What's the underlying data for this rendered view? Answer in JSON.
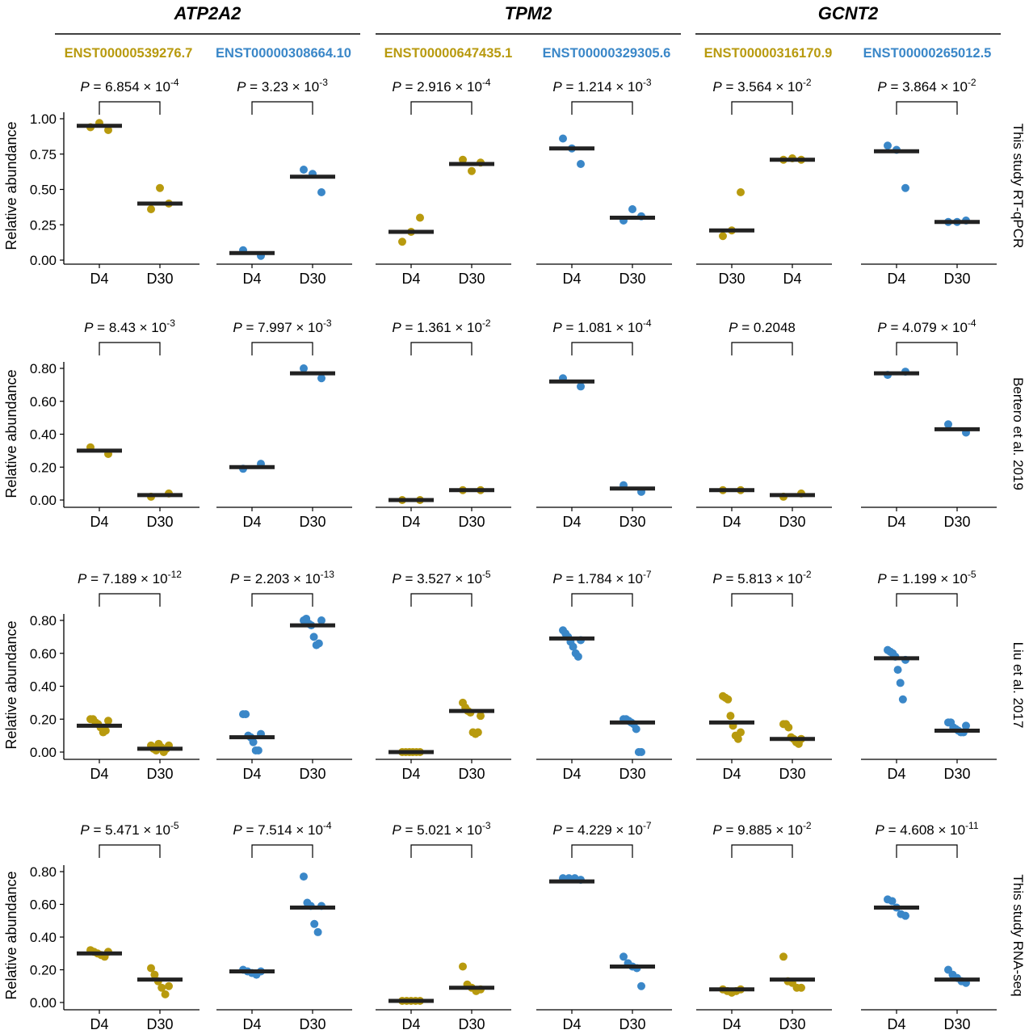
{
  "colors": {
    "isoformA": "#B89A0E",
    "isoformB": "#3A87C8",
    "medianBar": "#222222",
    "axis": "#000000"
  },
  "genes": [
    {
      "name": "ATP2A2",
      "isoforms": [
        {
          "id": "ENST00000539276.7",
          "color": "#B89A0E"
        },
        {
          "id": "ENST00000308664.10",
          "color": "#3A87C8"
        }
      ]
    },
    {
      "name": "TPM2",
      "isoforms": [
        {
          "id": "ENST00000647435.1",
          "color": "#B89A0E"
        },
        {
          "id": "ENST00000329305.6",
          "color": "#3A87C8"
        }
      ]
    },
    {
      "name": "GCNT2",
      "isoforms": [
        {
          "id": "ENST00000316170.9",
          "color": "#B89A0E"
        },
        {
          "id": "ENST00000265012.5",
          "color": "#3A87C8"
        }
      ]
    }
  ],
  "ylabel": "Relative abundance",
  "rows": [
    {
      "label": "This study RT-qPCR",
      "yticks": [
        "0.00",
        "0.25",
        "0.50",
        "0.75",
        "1.00"
      ],
      "ylim": [
        0,
        1.0
      ]
    },
    {
      "label": "Bertero et al. 2019",
      "yticks": [
        "0.00",
        "0.20",
        "0.40",
        "0.60",
        "0.80"
      ],
      "ylim": [
        0,
        0.8
      ]
    },
    {
      "label": "Liu et al. 2017",
      "yticks": [
        "0.00",
        "0.20",
        "0.40",
        "0.60",
        "0.80"
      ],
      "ylim": [
        0,
        0.8
      ]
    },
    {
      "label": "This study RNA-seq",
      "yticks": [
        "0.00",
        "0.20",
        "0.40",
        "0.60",
        "0.80"
      ],
      "ylim": [
        0,
        0.8
      ]
    }
  ],
  "chart_data": [
    {
      "type": "scatter",
      "row": 0,
      "col": 0,
      "p_mant": "6.854",
      "p_exp": "-4",
      "groups": [
        {
          "label": "D4",
          "median": 0.95,
          "points": [
            0.94,
            0.97,
            0.92
          ]
        },
        {
          "label": "D30",
          "median": 0.4,
          "points": [
            0.36,
            0.51,
            0.4
          ]
        }
      ]
    },
    {
      "type": "scatter",
      "row": 0,
      "col": 1,
      "p_mant": "3.23",
      "p_exp": "-3",
      "groups": [
        {
          "label": "D4",
          "median": 0.05,
          "points": [
            0.07,
            0.03
          ]
        },
        {
          "label": "D30",
          "median": 0.59,
          "points": [
            0.64,
            0.61,
            0.48
          ]
        }
      ]
    },
    {
      "type": "scatter",
      "row": 0,
      "col": 2,
      "p_mant": "2.916",
      "p_exp": "-4",
      "groups": [
        {
          "label": "D4",
          "median": 0.2,
          "points": [
            0.13,
            0.2,
            0.3
          ]
        },
        {
          "label": "D30",
          "median": 0.68,
          "points": [
            0.71,
            0.63,
            0.69
          ]
        }
      ]
    },
    {
      "type": "scatter",
      "row": 0,
      "col": 3,
      "p_mant": "1.214",
      "p_exp": "-3",
      "groups": [
        {
          "label": "D4",
          "median": 0.79,
          "points": [
            0.86,
            0.79,
            0.68
          ]
        },
        {
          "label": "D30",
          "median": 0.3,
          "points": [
            0.28,
            0.36,
            0.31
          ]
        }
      ]
    },
    {
      "type": "scatter",
      "row": 0,
      "col": 4,
      "p_mant": "3.564",
      "p_exp": "-2",
      "groups": [
        {
          "label": "D30",
          "median": 0.21,
          "points": [
            0.17,
            0.21,
            0.48
          ]
        },
        {
          "label": "D4",
          "median": 0.71,
          "points": [
            0.71,
            0.72,
            0.71
          ]
        }
      ]
    },
    {
      "type": "scatter",
      "row": 0,
      "col": 5,
      "p_mant": "3.864",
      "p_exp": "-2",
      "groups": [
        {
          "label": "D4",
          "median": 0.77,
          "points": [
            0.81,
            0.78,
            0.51
          ]
        },
        {
          "label": "D30",
          "median": 0.27,
          "points": [
            0.27,
            0.27,
            0.28
          ]
        }
      ]
    },
    {
      "type": "scatter",
      "row": 1,
      "col": 0,
      "p_mant": "8.43",
      "p_exp": "-3",
      "groups": [
        {
          "label": "D4",
          "median": 0.3,
          "points": [
            0.32,
            0.28
          ]
        },
        {
          "label": "D30",
          "median": 0.03,
          "points": [
            0.02,
            0.04
          ]
        }
      ]
    },
    {
      "type": "scatter",
      "row": 1,
      "col": 1,
      "p_mant": "7.997",
      "p_exp": "-3",
      "groups": [
        {
          "label": "D4",
          "median": 0.2,
          "points": [
            0.19,
            0.22
          ]
        },
        {
          "label": "D30",
          "median": 0.77,
          "points": [
            0.8,
            0.74
          ]
        }
      ]
    },
    {
      "type": "scatter",
      "row": 1,
      "col": 2,
      "p_mant": "1.361",
      "p_exp": "-2",
      "groups": [
        {
          "label": "D4",
          "median": 0.0,
          "points": [
            0.0,
            0.0
          ]
        },
        {
          "label": "D30",
          "median": 0.06,
          "points": [
            0.06,
            0.06
          ]
        }
      ]
    },
    {
      "type": "scatter",
      "row": 1,
      "col": 3,
      "p_mant": "1.081",
      "p_exp": "-4",
      "groups": [
        {
          "label": "D4",
          "median": 0.72,
          "points": [
            0.74,
            0.69
          ]
        },
        {
          "label": "D30",
          "median": 0.07,
          "points": [
            0.09,
            0.05
          ]
        }
      ]
    },
    {
      "type": "scatter",
      "row": 1,
      "col": 4,
      "p_value": "0.2048",
      "groups": [
        {
          "label": "D4",
          "median": 0.06,
          "points": [
            0.06,
            0.06
          ]
        },
        {
          "label": "D30",
          "median": 0.03,
          "points": [
            0.02,
            0.04
          ]
        }
      ]
    },
    {
      "type": "scatter",
      "row": 1,
      "col": 5,
      "p_mant": "4.079",
      "p_exp": "-4",
      "groups": [
        {
          "label": "D4",
          "median": 0.77,
          "points": [
            0.76,
            0.78
          ]
        },
        {
          "label": "D30",
          "median": 0.43,
          "points": [
            0.46,
            0.41
          ]
        }
      ]
    },
    {
      "type": "scatter",
      "row": 2,
      "col": 0,
      "p_mant": "7.189",
      "p_exp": "-12",
      "groups": [
        {
          "label": "D4",
          "median": 0.16,
          "points": [
            0.2,
            0.2,
            0.18,
            0.17,
            0.15,
            0.12,
            0.13,
            0.19
          ]
        },
        {
          "label": "D30",
          "median": 0.02,
          "points": [
            0.04,
            0.02,
            0.01,
            0.05,
            0.03,
            0.0,
            0.02,
            0.04
          ]
        }
      ]
    },
    {
      "type": "scatter",
      "row": 2,
      "col": 1,
      "p_mant": "2.203",
      "p_exp": "-13",
      "groups": [
        {
          "label": "D4",
          "median": 0.09,
          "points": [
            0.23,
            0.23,
            0.1,
            0.09,
            0.06,
            0.01,
            0.01,
            0.11
          ]
        },
        {
          "label": "D30",
          "median": 0.77,
          "points": [
            0.8,
            0.81,
            0.78,
            0.77,
            0.7,
            0.65,
            0.66,
            0.8
          ]
        }
      ]
    },
    {
      "type": "scatter",
      "row": 2,
      "col": 2,
      "p_mant": "3.527",
      "p_exp": "-5",
      "groups": [
        {
          "label": "D4",
          "median": 0.0,
          "points": [
            0.0,
            0.0,
            0.0,
            0.0,
            0.0,
            0.0
          ]
        },
        {
          "label": "D30",
          "median": 0.25,
          "points": [
            0.3,
            0.27,
            0.25,
            0.24,
            0.12,
            0.11,
            0.12,
            0.22
          ]
        }
      ]
    },
    {
      "type": "scatter",
      "row": 2,
      "col": 3,
      "p_mant": "1.784",
      "p_exp": "-7",
      "groups": [
        {
          "label": "D4",
          "median": 0.69,
          "points": [
            0.74,
            0.72,
            0.7,
            0.67,
            0.64,
            0.6,
            0.58,
            0.68
          ]
        },
        {
          "label": "D30",
          "median": 0.18,
          "points": [
            0.2,
            0.2,
            0.19,
            0.18,
            0.17,
            0.14,
            0.0,
            0.0
          ]
        }
      ]
    },
    {
      "type": "scatter",
      "row": 2,
      "col": 4,
      "p_mant": "5.813",
      "p_exp": "-2",
      "groups": [
        {
          "label": "D4",
          "median": 0.18,
          "points": [
            0.34,
            0.33,
            0.32,
            0.22,
            0.16,
            0.1,
            0.08,
            0.12
          ]
        },
        {
          "label": "D30",
          "median": 0.08,
          "points": [
            0.17,
            0.17,
            0.15,
            0.09,
            0.08,
            0.06,
            0.05,
            0.08
          ]
        }
      ]
    },
    {
      "type": "scatter",
      "row": 2,
      "col": 5,
      "p_mant": "1.199",
      "p_exp": "-5",
      "groups": [
        {
          "label": "D4",
          "median": 0.57,
          "points": [
            0.62,
            0.61,
            0.6,
            0.58,
            0.5,
            0.42,
            0.32,
            0.56
          ]
        },
        {
          "label": "D30",
          "median": 0.13,
          "points": [
            0.18,
            0.18,
            0.15,
            0.14,
            0.13,
            0.12,
            0.12,
            0.16
          ]
        }
      ]
    },
    {
      "type": "scatter",
      "row": 3,
      "col": 0,
      "p_mant": "5.471",
      "p_exp": "-5",
      "groups": [
        {
          "label": "D4",
          "median": 0.3,
          "points": [
            0.32,
            0.31,
            0.3,
            0.29,
            0.28,
            0.31
          ]
        },
        {
          "label": "D30",
          "median": 0.14,
          "points": [
            0.21,
            0.17,
            0.13,
            0.09,
            0.05,
            0.1
          ]
        }
      ]
    },
    {
      "type": "scatter",
      "row": 3,
      "col": 1,
      "p_mant": "7.514",
      "p_exp": "-4",
      "groups": [
        {
          "label": "D4",
          "median": 0.19,
          "points": [
            0.2,
            0.19,
            0.18,
            0.17,
            0.19
          ]
        },
        {
          "label": "D30",
          "median": 0.58,
          "points": [
            0.77,
            0.61,
            0.59,
            0.48,
            0.43,
            0.59
          ]
        }
      ]
    },
    {
      "type": "scatter",
      "row": 3,
      "col": 2,
      "p_mant": "5.021",
      "p_exp": "-3",
      "groups": [
        {
          "label": "D4",
          "median": 0.01,
          "points": [
            0.01,
            0.01,
            0.01,
            0.01,
            0.01
          ]
        },
        {
          "label": "D30",
          "median": 0.09,
          "points": [
            0.22,
            0.11,
            0.09,
            0.07,
            0.08
          ]
        }
      ]
    },
    {
      "type": "scatter",
      "row": 3,
      "col": 3,
      "p_mant": "4.229",
      "p_exp": "-7",
      "groups": [
        {
          "label": "D4",
          "median": 0.74,
          "points": [
            0.76,
            0.76,
            0.76,
            0.75
          ]
        },
        {
          "label": "D30",
          "median": 0.22,
          "points": [
            0.28,
            0.24,
            0.22,
            0.21,
            0.1
          ]
        }
      ]
    },
    {
      "type": "scatter",
      "row": 3,
      "col": 4,
      "p_mant": "9.885",
      "p_exp": "-2",
      "groups": [
        {
          "label": "D4",
          "median": 0.08,
          "points": [
            0.08,
            0.07,
            0.06,
            0.07,
            0.08
          ]
        },
        {
          "label": "D30",
          "median": 0.14,
          "points": [
            0.28,
            0.13,
            0.12,
            0.09,
            0.09
          ]
        }
      ]
    },
    {
      "type": "scatter",
      "row": 3,
      "col": 5,
      "p_mant": "4.608",
      "p_exp": "-11",
      "groups": [
        {
          "label": "D4",
          "median": 0.58,
          "points": [
            0.63,
            0.62,
            0.58,
            0.54,
            0.53
          ]
        },
        {
          "label": "D30",
          "median": 0.14,
          "points": [
            0.2,
            0.17,
            0.15,
            0.13,
            0.12
          ]
        }
      ]
    }
  ]
}
